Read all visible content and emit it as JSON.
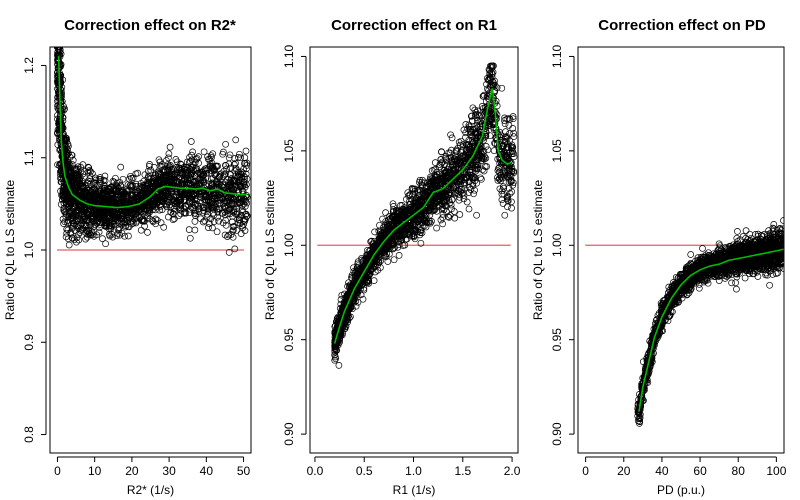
{
  "chart_data": [
    {
      "type": "scatter",
      "title": "Correction effect on R2*",
      "xlabel": "R2* (1/s)",
      "ylabel": "Ratio of QL to LS estimate",
      "xlim": [
        -2,
        52
      ],
      "ylim": [
        0.78,
        1.22
      ],
      "xticks": [
        0,
        10,
        20,
        30,
        40,
        50
      ],
      "yticks": [
        0.8,
        0.9,
        1.0,
        1.1,
        1.2
      ],
      "xtick_labels": [
        "0",
        "10",
        "20",
        "30",
        "40",
        "50"
      ],
      "ytick_labels": [
        "0.8",
        "0.9",
        "1.0",
        "1.1",
        "1.2"
      ],
      "reference_line": {
        "y": 1.0,
        "color": "#e06060"
      },
      "scatter_color": "#000000",
      "smooth_color": "#00bb00",
      "smooth": {
        "x": [
          0.3,
          0.6,
          1,
          1.5,
          2,
          3,
          4,
          6,
          8,
          10,
          13,
          16,
          19,
          22,
          25,
          27,
          29,
          31,
          33,
          35,
          37,
          39,
          41,
          43,
          45,
          47,
          49,
          51
        ],
        "y": [
          1.21,
          1.17,
          1.12,
          1.095,
          1.08,
          1.068,
          1.06,
          1.054,
          1.05,
          1.048,
          1.047,
          1.046,
          1.047,
          1.05,
          1.058,
          1.066,
          1.069,
          1.068,
          1.067,
          1.067,
          1.066,
          1.067,
          1.064,
          1.066,
          1.062,
          1.061,
          1.06,
          1.06
        ]
      },
      "cloud_model": {
        "x_range": [
          0,
          51
        ],
        "n_points": 2400,
        "center": "smooth",
        "spread": [
          [
            0,
            0.08
          ],
          [
            3,
            0.04
          ],
          [
            10,
            0.028
          ],
          [
            20,
            0.024
          ],
          [
            35,
            0.03
          ],
          [
            50,
            0.04
          ]
        ],
        "clamp": [
          0.795,
          1.22
        ]
      }
    },
    {
      "type": "scatter",
      "title": "Correction effect on R1",
      "xlabel": "R1 (1/s)",
      "ylabel": "Ratio of QL to LS estimate",
      "xlim": [
        -0.05,
        2.06
      ],
      "ylim": [
        0.89,
        1.105
      ],
      "xticks": [
        0.0,
        0.5,
        1.0,
        1.5,
        2.0
      ],
      "yticks": [
        0.9,
        0.95,
        1.0,
        1.05,
        1.1
      ],
      "xtick_labels": [
        "0.0",
        "0.5",
        "1.0",
        "1.5",
        "2.0"
      ],
      "ytick_labels": [
        "0.90",
        "0.95",
        "1.00",
        "1.05",
        "1.10"
      ],
      "reference_line": {
        "y": 1.0,
        "color": "#e06060"
      },
      "scatter_color": "#000000",
      "smooth_color": "#00bb00",
      "smooth": {
        "x": [
          0.2,
          0.25,
          0.3,
          0.4,
          0.5,
          0.6,
          0.7,
          0.8,
          0.9,
          1.0,
          1.1,
          1.2,
          1.3,
          1.4,
          1.5,
          1.6,
          1.7,
          1.75,
          1.8,
          1.83,
          1.86,
          1.9,
          1.95,
          2.0
        ],
        "y": [
          0.948,
          0.957,
          0.965,
          0.977,
          0.986,
          0.995,
          1.002,
          1.008,
          1.012,
          1.016,
          1.02,
          1.028,
          1.03,
          1.035,
          1.04,
          1.047,
          1.058,
          1.072,
          1.083,
          1.07,
          1.05,
          1.045,
          1.043,
          1.044
        ]
      },
      "cloud_model": {
        "x_range": [
          0.2,
          2.02
        ],
        "n_points": 2200,
        "center": "smooth",
        "spread": [
          [
            0.2,
            0.008
          ],
          [
            0.5,
            0.008
          ],
          [
            1.0,
            0.011
          ],
          [
            1.5,
            0.018
          ],
          [
            2.0,
            0.022
          ]
        ],
        "clamp": [
          0.919,
          1.095
        ]
      }
    },
    {
      "type": "scatter",
      "title": "Correction effect on PD",
      "xlabel": "PD (p.u.)",
      "ylabel": "Ratio of QL to LS estimate",
      "xlim": [
        -4,
        104
      ],
      "ylim": [
        0.89,
        1.105
      ],
      "xticks": [
        0,
        20,
        40,
        60,
        80,
        100
      ],
      "yticks": [
        0.9,
        0.95,
        1.0,
        1.05,
        1.1
      ],
      "xtick_labels": [
        "0",
        "20",
        "40",
        "60",
        "80",
        "100"
      ],
      "ytick_labels": [
        "0.90",
        "0.95",
        "1.00",
        "1.05",
        "1.10"
      ],
      "reference_line": {
        "y": 1.0,
        "color": "#e06060"
      },
      "scatter_color": "#000000",
      "smooth_color": "#00bb00",
      "smooth": {
        "x": [
          28,
          30,
          33,
          36,
          40,
          45,
          50,
          55,
          60,
          65,
          70,
          75,
          80,
          85,
          90,
          95,
          100,
          104
        ],
        "y": [
          0.912,
          0.925,
          0.938,
          0.951,
          0.962,
          0.972,
          0.979,
          0.984,
          0.987,
          0.989,
          0.99,
          0.992,
          0.993,
          0.994,
          0.995,
          0.996,
          0.997,
          0.998
        ]
      },
      "cloud_model": {
        "x_range": [
          27,
          104
        ],
        "n_points": 2200,
        "center": "smooth",
        "spread": [
          [
            27,
            0.006
          ],
          [
            40,
            0.006
          ],
          [
            60,
            0.006
          ],
          [
            80,
            0.008
          ],
          [
            104,
            0.01
          ]
        ],
        "clamp": [
          0.905,
          1.063
        ]
      }
    }
  ]
}
